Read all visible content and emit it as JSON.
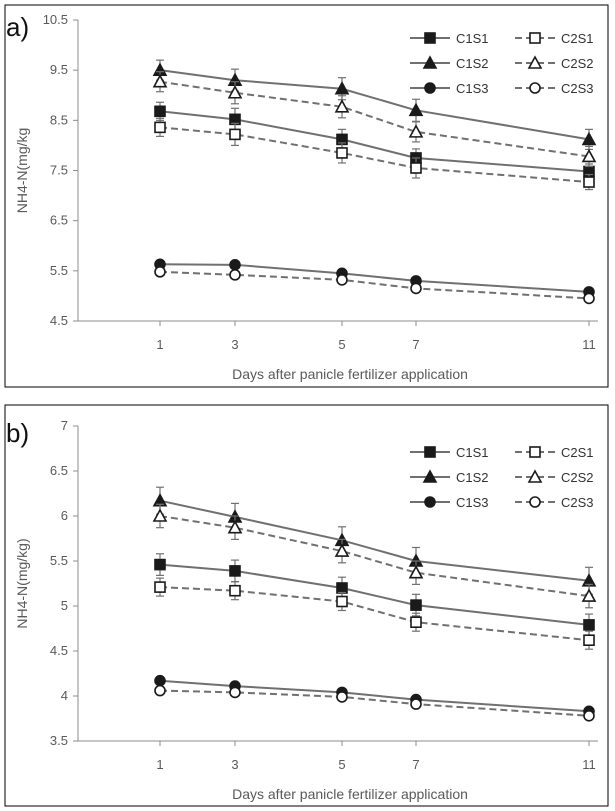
{
  "chart_data": [
    {
      "panel": "a)",
      "type": "line",
      "xlabel": "Days after panicle fertilizer application",
      "ylabel": "NH4-N(mg/kg",
      "categories": [
        "1",
        "3",
        "5",
        "7",
        "11"
      ],
      "ylim": [
        4.5,
        10.5
      ],
      "yticks": [
        "4.5",
        "5.5",
        "6.5",
        "7.5",
        "8.5",
        "9.5",
        "10.5"
      ],
      "grid": false,
      "legend_position": "top-right",
      "series": [
        {
          "name": "C1S1",
          "marker": "square",
          "filled": true,
          "dashed": false,
          "values": [
            8.68,
            8.52,
            8.12,
            7.75,
            7.48
          ],
          "errors": [
            0.18,
            0.22,
            0.2,
            0.18,
            0.15
          ]
        },
        {
          "name": "C2S1",
          "marker": "square",
          "filled": false,
          "dashed": true,
          "values": [
            8.36,
            8.22,
            7.85,
            7.55,
            7.27
          ],
          "errors": [
            0.18,
            0.22,
            0.2,
            0.2,
            0.15
          ]
        },
        {
          "name": "C1S2",
          "marker": "triangle",
          "filled": true,
          "dashed": false,
          "values": [
            9.5,
            9.3,
            9.13,
            8.7,
            8.12
          ],
          "errors": [
            0.2,
            0.22,
            0.22,
            0.22,
            0.2
          ]
        },
        {
          "name": "C2S2",
          "marker": "triangle",
          "filled": false,
          "dashed": true,
          "values": [
            9.27,
            9.05,
            8.77,
            8.27,
            7.78
          ],
          "errors": [
            0.2,
            0.22,
            0.22,
            0.2,
            0.2
          ]
        },
        {
          "name": "C1S3",
          "marker": "circle",
          "filled": true,
          "dashed": false,
          "values": [
            5.63,
            5.62,
            5.45,
            5.3,
            5.08
          ],
          "errors": [
            0.07,
            0.07,
            0.07,
            0.07,
            0.07
          ]
        },
        {
          "name": "C2S3",
          "marker": "circle",
          "filled": false,
          "dashed": true,
          "values": [
            5.48,
            5.42,
            5.32,
            5.15,
            4.95
          ],
          "errors": [
            0.07,
            0.07,
            0.07,
            0.07,
            0.07
          ]
        }
      ]
    },
    {
      "panel": "b)",
      "type": "line",
      "xlabel": "Days after panicle fertilizer application",
      "ylabel": "NH4-N(mg/kg)",
      "categories": [
        "1",
        "3",
        "5",
        "7",
        "11"
      ],
      "ylim": [
        3.5,
        7
      ],
      "yticks": [
        "3.5",
        "4",
        "4.5",
        "5",
        "5.5",
        "6",
        "6.5",
        "7"
      ],
      "grid": false,
      "legend_position": "top-right",
      "series": [
        {
          "name": "C1S1",
          "marker": "square",
          "filled": true,
          "dashed": false,
          "values": [
            5.46,
            5.39,
            5.2,
            5.01,
            4.79
          ],
          "errors": [
            0.12,
            0.12,
            0.12,
            0.12,
            0.12
          ]
        },
        {
          "name": "C2S1",
          "marker": "square",
          "filled": false,
          "dashed": true,
          "values": [
            5.21,
            5.17,
            5.05,
            4.82,
            4.62
          ],
          "errors": [
            0.1,
            0.1,
            0.1,
            0.1,
            0.1
          ]
        },
        {
          "name": "C1S2",
          "marker": "triangle",
          "filled": true,
          "dashed": false,
          "values": [
            6.17,
            5.99,
            5.73,
            5.5,
            5.28
          ],
          "errors": [
            0.15,
            0.15,
            0.15,
            0.15,
            0.15
          ]
        },
        {
          "name": "C2S2",
          "marker": "triangle",
          "filled": false,
          "dashed": true,
          "values": [
            6.0,
            5.87,
            5.61,
            5.37,
            5.11
          ],
          "errors": [
            0.13,
            0.13,
            0.13,
            0.13,
            0.13
          ]
        },
        {
          "name": "C1S3",
          "marker": "circle",
          "filled": true,
          "dashed": false,
          "values": [
            4.17,
            4.11,
            4.04,
            3.96,
            3.83
          ],
          "errors": [
            0.04,
            0.04,
            0.04,
            0.04,
            0.04
          ]
        },
        {
          "name": "C2S3",
          "marker": "circle",
          "filled": false,
          "dashed": true,
          "values": [
            4.06,
            4.04,
            3.99,
            3.91,
            3.78
          ],
          "errors": [
            0.04,
            0.04,
            0.04,
            0.04,
            0.04
          ]
        }
      ]
    }
  ],
  "style": {
    "line_color": "#707070",
    "marker_color": "#1a1a1a",
    "axis_color": "#8c8c8c",
    "frame_color": "#000000"
  }
}
